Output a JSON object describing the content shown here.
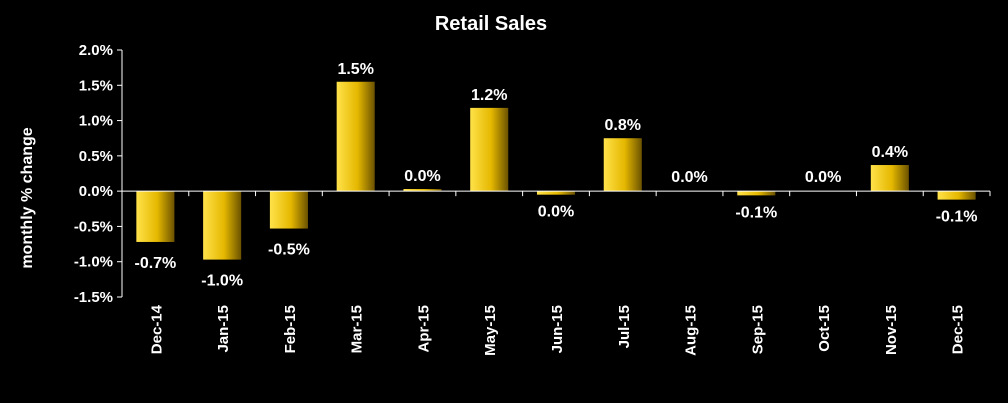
{
  "chart_data": {
    "type": "bar",
    "title": "Retail Sales",
    "xlabel": "",
    "ylabel": "monthly % change",
    "ylim": [
      -1.5,
      2.0
    ],
    "yticks": [
      2.0,
      1.5,
      1.0,
      0.5,
      0.0,
      -0.5,
      -1.0,
      -1.5
    ],
    "ytick_labels": [
      "2.0%",
      "1.5%",
      "1.0%",
      "0.5%",
      "0.0%",
      "-0.5%",
      "-1.0%",
      "-1.5%"
    ],
    "categories": [
      "Dec-14",
      "Jan-15",
      "Feb-15",
      "Mar-15",
      "Apr-15",
      "May-15",
      "Jun-15",
      "Jul-15",
      "Aug-15",
      "Sep-15",
      "Oct-15",
      "Nov-15",
      "Dec-15"
    ],
    "values": [
      -0.72,
      -0.97,
      -0.53,
      1.55,
      0.03,
      1.18,
      -0.05,
      0.75,
      0.0,
      -0.06,
      0.0,
      0.37,
      -0.12
    ],
    "data_labels": [
      "-0.7%",
      "-1.0%",
      "-0.5%",
      "1.5%",
      "0.0%",
      "1.2%",
      "0.0%",
      "0.8%",
      "0.0%",
      "-0.1%",
      "0.0%",
      "0.4%",
      "-0.1%"
    ],
    "grid": false,
    "legend": "none",
    "colors": {
      "background": "#000000",
      "bar_light": "#ffe24a",
      "bar_mid": "#e5b800",
      "bar_dark": "#6b5200",
      "text": "#ffffff"
    }
  }
}
